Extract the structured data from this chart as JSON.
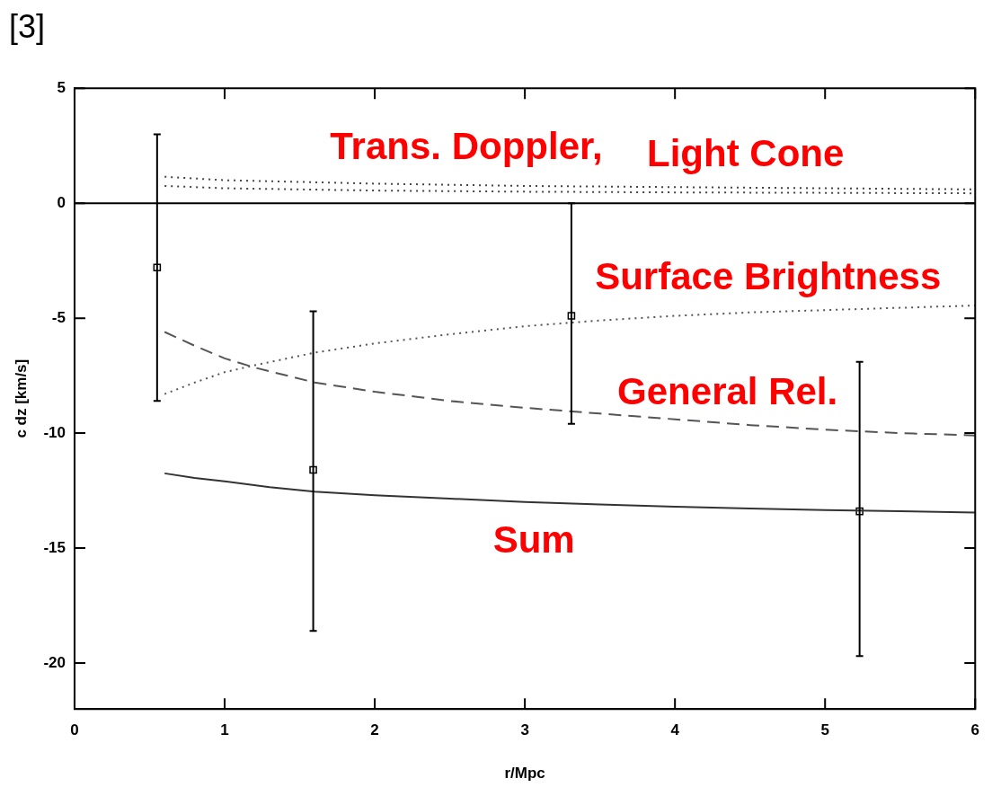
{
  "chart_data": {
    "type": "line",
    "title": "[3]",
    "xlabel": "r/Mpc",
    "ylabel": "c dz [km/s]",
    "xlim": [
      0,
      6
    ],
    "xticks": [
      0,
      1,
      2,
      3,
      4,
      5,
      6
    ],
    "ylim": [
      -22,
      5
    ],
    "yticks": [
      -20,
      -15,
      -10,
      -5,
      0,
      5
    ],
    "ref_lines": [
      {
        "axis": "y",
        "value": 0,
        "color": "#000000"
      }
    ],
    "series": [
      {
        "name": "Trans. Doppler,",
        "color": "#444444",
        "line_style": "dotted",
        "marker": "none",
        "x": [
          0.6,
          1,
          2,
          3,
          4,
          5,
          6
        ],
        "values": [
          1.15,
          1.0,
          0.85,
          0.75,
          0.7,
          0.65,
          0.6
        ]
      },
      {
        "name": "Light Cone",
        "color": "#444444",
        "line_style": "dotted",
        "marker": "none",
        "x": [
          0.6,
          1,
          2,
          3,
          4,
          5,
          6
        ],
        "values": [
          0.75,
          0.65,
          0.55,
          0.5,
          0.47,
          0.45,
          0.43
        ]
      },
      {
        "name": "Surface Brightness",
        "color": "#555555",
        "line_style": "dotted",
        "marker": "none",
        "x": [
          0.6,
          0.8,
          1.0,
          1.2,
          1.6,
          2.0,
          2.5,
          3.0,
          3.5,
          4.0,
          4.5,
          5.0,
          5.5,
          6.0
        ],
        "values": [
          -8.3,
          -7.8,
          -7.35,
          -7.05,
          -6.5,
          -6.1,
          -5.7,
          -5.35,
          -5.1,
          -4.9,
          -4.75,
          -4.65,
          -4.55,
          -4.45
        ]
      },
      {
        "name": "General Rel.",
        "color": "#555555",
        "line_style": "dashed",
        "marker": "none",
        "x": [
          0.6,
          0.8,
          1.0,
          1.2,
          1.6,
          2.0,
          2.5,
          3.0,
          3.5,
          4.0,
          4.5,
          5.0,
          5.5,
          6.0
        ],
        "values": [
          -5.6,
          -6.2,
          -6.75,
          -7.15,
          -7.8,
          -8.2,
          -8.6,
          -8.9,
          -9.15,
          -9.4,
          -9.65,
          -9.85,
          -10.0,
          -10.1
        ]
      },
      {
        "name": "Sum",
        "color": "#333333",
        "line_style": "solid",
        "marker": "none",
        "x": [
          0.6,
          0.8,
          1.0,
          1.3,
          1.6,
          2.0,
          2.5,
          3.0,
          3.5,
          4.0,
          4.5,
          5.0,
          5.5,
          6.0
        ],
        "values": [
          -11.75,
          -11.95,
          -12.1,
          -12.35,
          -12.55,
          -12.7,
          -12.85,
          -13.0,
          -13.1,
          -13.2,
          -13.28,
          -13.35,
          -13.4,
          -13.45
        ]
      },
      {
        "type": "scatter",
        "color": "#000000",
        "marker": "square",
        "x": [
          0.55,
          1.59,
          3.31,
          5.23
        ],
        "values": [
          -2.8,
          -11.6,
          -4.9,
          -13.4
        ],
        "errors": [
          [
            -8.6,
            3.0
          ],
          [
            -18.6,
            -4.7
          ],
          [
            -9.6,
            0
          ],
          [
            -19.7,
            -6.9
          ]
        ]
      }
    ]
  }
}
